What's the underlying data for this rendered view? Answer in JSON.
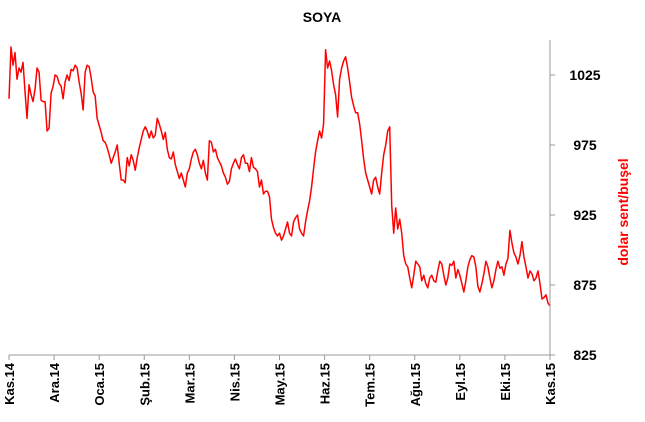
{
  "chart_data": {
    "type": "line",
    "title": "SOYA",
    "ylabel": "dolar sent/buşel",
    "xlabel": "",
    "ylim": [
      825,
      1050
    ],
    "yticks": [
      825,
      875,
      925,
      975,
      1025
    ],
    "x_tick_labels": [
      "Kas.14",
      "Ara.14",
      "Oca.15",
      "Şub.15",
      "Mar.15",
      "Nis.15",
      "May.15",
      "Haz.15",
      "Tem.15",
      "Ağu.15",
      "Eyl.15",
      "Eki.15",
      "Kas.15"
    ],
    "line_color": "#ff0000",
    "grid": false,
    "series": [
      {
        "values": [
          1008,
          1045,
          1032,
          1041,
          1022,
          1030,
          1027,
          1034,
          1013,
          994,
          1018,
          1011,
          1006,
          1015,
          1030,
          1027,
          1007,
          1006,
          1006,
          985,
          987,
          1012,
          1017,
          1025,
          1024,
          1019,
          1017,
          1008,
          1020,
          1025,
          1021,
          1029,
          1028,
          1032,
          1030,
          1020,
          1012,
          1000,
          1027,
          1032,
          1031,
          1023,
          1013,
          1010,
          994,
          989,
          984,
          978,
          977,
          973,
          968,
          962,
          966,
          970,
          975,
          962,
          950,
          950,
          948,
          966,
          960,
          968,
          964,
          957,
          966,
          973,
          979,
          985,
          988,
          985,
          980,
          985,
          980,
          982,
          994,
          990,
          985,
          979,
          984,
          972,
          966,
          965,
          970,
          961,
          956,
          951,
          955,
          950,
          945,
          955,
          958,
          965,
          970,
          972,
          968,
          962,
          958,
          964,
          955,
          950,
          978,
          977,
          970,
          972,
          966,
          963,
          960,
          955,
          952,
          947,
          949,
          958,
          962,
          965,
          961,
          958,
          966,
          968,
          962,
          962,
          956,
          966,
          959,
          958,
          956,
          945,
          950,
          940,
          942,
          942,
          938,
          922,
          916,
          912,
          910,
          912,
          907,
          910,
          915,
          920,
          912,
          910,
          920,
          923,
          925,
          915,
          912,
          910,
          920,
          928,
          935,
          945,
          958,
          970,
          978,
          985,
          980,
          990,
          1043,
          1030,
          1035,
          1028,
          1018,
          1011,
          995,
          1022,
          1030,
          1035,
          1038,
          1030,
          1020,
          1009,
          1003,
          998,
          998,
          990,
          978,
          965,
          955,
          950,
          945,
          940,
          950,
          952,
          945,
          940,
          955,
          968,
          975,
          985,
          988,
          932,
          912,
          930,
          915,
          922,
          912,
          896,
          890,
          888,
          880,
          873,
          882,
          892,
          890,
          888,
          878,
          882,
          876,
          873,
          880,
          882,
          878,
          877,
          885,
          892,
          890,
          882,
          875,
          880,
          890,
          889,
          892,
          880,
          886,
          882,
          876,
          870,
          878,
          888,
          893,
          896,
          895,
          888,
          874,
          870,
          876,
          883,
          892,
          888,
          880,
          873,
          878,
          886,
          892,
          887,
          888,
          882,
          890,
          894,
          914,
          905,
          898,
          895,
          890,
          896,
          906,
          895,
          888,
          880,
          885,
          883,
          878,
          880,
          885,
          876,
          865,
          866,
          868,
          862,
          860
        ]
      }
    ]
  }
}
